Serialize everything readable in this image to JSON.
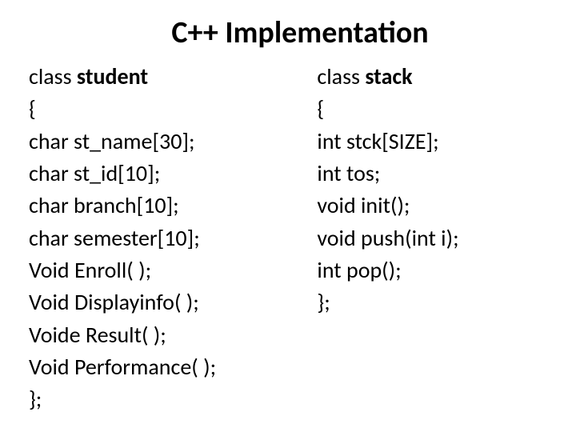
{
  "title": "C++ Implementation",
  "left": {
    "line0_prefix": "class ",
    "line0_bold": "student",
    "line1": "{",
    "line2": "char st_name[30];",
    "line3": "char st_id[10];",
    "line4": "char branch[10];",
    "line5": "char semester[10];",
    "line6": "Void Enroll( );",
    "line7": "Void Displayinfo( );",
    "line8": "Voide Result( );",
    "line9": "Void Performance( );",
    "line10": "};"
  },
  "right": {
    "line0_prefix": "class ",
    "line0_bold": "stack",
    "line1": " {",
    "line2": "int stck[SIZE];",
    "line3": "int tos;",
    "line4": "void init();",
    "line5": "void push(int i);",
    "line6": "int pop();",
    "line7": "};"
  },
  "style": {
    "title_fontsize": 38,
    "code_fontsize": 28,
    "line_height": 1.44,
    "text_color": "#000000",
    "background_color": "#ffffff",
    "font_family": "Calibri, Arial, sans-serif"
  }
}
